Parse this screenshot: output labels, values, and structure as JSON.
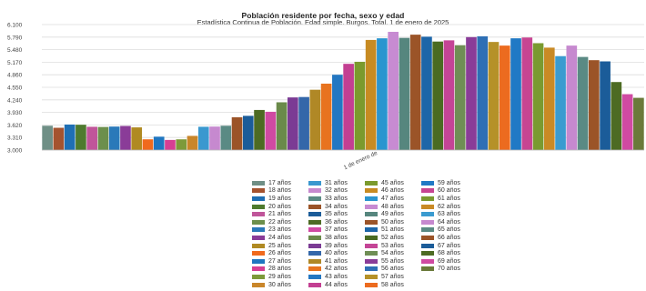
{
  "chart_data": {
    "type": "bar",
    "title": "Población residente por fecha, sexo y edad",
    "subtitle": "Estadística Continua de Población. Edad simple. Burgos. Total. 1 de enero de 2025",
    "categories": [
      "1 de enero de"
    ],
    "ylim": [
      3000,
      6100
    ],
    "yticks": [
      "3.000",
      "3.310",
      "3.620",
      "3.930",
      "4.240",
      "4.550",
      "4.860",
      "5.170",
      "5.480",
      "5.790",
      "6.100"
    ],
    "ytick_values": [
      3000,
      3310,
      3620,
      3930,
      4240,
      4550,
      4860,
      5170,
      5480,
      5790,
      6100
    ],
    "grid": true,
    "legend_position": "bottom",
    "series": [
      {
        "name": "17 años",
        "value": 3600,
        "color": "#6f8f86"
      },
      {
        "name": "18 años",
        "value": 3550,
        "color": "#a5532f"
      },
      {
        "name": "19 años",
        "value": 3630,
        "color": "#1f6fb4"
      },
      {
        "name": "20 años",
        "value": 3625,
        "color": "#4e7a2e"
      },
      {
        "name": "21 años",
        "value": 3575,
        "color": "#c0559a"
      },
      {
        "name": "22 años",
        "value": 3570,
        "color": "#6c8f4c"
      },
      {
        "name": "23 años",
        "value": 3580,
        "color": "#2a79b9"
      },
      {
        "name": "24 años",
        "value": 3595,
        "color": "#8a3c98"
      },
      {
        "name": "25 años",
        "value": 3560,
        "color": "#b08a22"
      },
      {
        "name": "26 años",
        "value": 3265,
        "color": "#f06a1d"
      },
      {
        "name": "27 años",
        "value": 3330,
        "color": "#1f76c0"
      },
      {
        "name": "28 años",
        "value": 3250,
        "color": "#d63f93"
      },
      {
        "name": "29 años",
        "value": 3265,
        "color": "#7d9a3a"
      },
      {
        "name": "30 años",
        "value": 3350,
        "color": "#c9862a"
      },
      {
        "name": "31 años",
        "value": 3575,
        "color": "#3a98cf"
      },
      {
        "name": "32 años",
        "value": 3580,
        "color": "#c689cf"
      },
      {
        "name": "33 años",
        "value": 3600,
        "color": "#5a8a84"
      },
      {
        "name": "34 años",
        "value": 3810,
        "color": "#9b5428"
      },
      {
        "name": "35 años",
        "value": 3845,
        "color": "#1b5c99"
      },
      {
        "name": "36 años",
        "value": 3990,
        "color": "#4d6b23"
      },
      {
        "name": "37 años",
        "value": 3945,
        "color": "#d04aa2"
      },
      {
        "name": "38 años",
        "value": 4180,
        "color": "#6a8a4a"
      },
      {
        "name": "39 años",
        "value": 4300,
        "color": "#7b3b94"
      },
      {
        "name": "40 años",
        "value": 4310,
        "color": "#3467a9"
      },
      {
        "name": "41 años",
        "value": 4490,
        "color": "#b08826"
      },
      {
        "name": "42 años",
        "value": 4640,
        "color": "#e8731f"
      },
      {
        "name": "43 años",
        "value": 4860,
        "color": "#2377c2"
      },
      {
        "name": "44 años",
        "value": 5130,
        "color": "#c33f92"
      },
      {
        "name": "45 años",
        "value": 5180,
        "color": "#7b9a2d"
      },
      {
        "name": "46 años",
        "value": 5720,
        "color": "#c78b22"
      },
      {
        "name": "47 años",
        "value": 5760,
        "color": "#2a95cf"
      },
      {
        "name": "48 años",
        "value": 5920,
        "color": "#c78bd2"
      },
      {
        "name": "49 años",
        "value": 5770,
        "color": "#56867e"
      },
      {
        "name": "50 años",
        "value": 5850,
        "color": "#9b5428"
      },
      {
        "name": "51 años",
        "value": 5800,
        "color": "#1d66a8"
      },
      {
        "name": "52 años",
        "value": 5680,
        "color": "#4a6b22"
      },
      {
        "name": "53 años",
        "value": 5710,
        "color": "#c44596"
      },
      {
        "name": "54 años",
        "value": 5590,
        "color": "#6f8e55"
      },
      {
        "name": "55 años",
        "value": 5790,
        "color": "#8a3c98"
      },
      {
        "name": "56 años",
        "value": 5810,
        "color": "#2e6fb5"
      },
      {
        "name": "57 años",
        "value": 5670,
        "color": "#b59128"
      },
      {
        "name": "58 años",
        "value": 5580,
        "color": "#ec6b1f"
      },
      {
        "name": "59 años",
        "value": 5760,
        "color": "#2079c5"
      },
      {
        "name": "60 años",
        "value": 5780,
        "color": "#c74592"
      },
      {
        "name": "61 años",
        "value": 5640,
        "color": "#7a9a30"
      },
      {
        "name": "62 años",
        "value": 5530,
        "color": "#c98a25"
      },
      {
        "name": "63 años",
        "value": 5320,
        "color": "#3a9bd0"
      },
      {
        "name": "64 años",
        "value": 5580,
        "color": "#c689cf"
      },
      {
        "name": "65 años",
        "value": 5300,
        "color": "#5a8a84"
      },
      {
        "name": "66 años",
        "value": 5220,
        "color": "#9b5428"
      },
      {
        "name": "67 años",
        "value": 5190,
        "color": "#1b5c99"
      },
      {
        "name": "68 años",
        "value": 4680,
        "color": "#4d6b23"
      },
      {
        "name": "69 años",
        "value": 4380,
        "color": "#d04aa2"
      },
      {
        "name": "70 años",
        "value": 4290,
        "color": "#6a7a3a"
      }
    ]
  }
}
